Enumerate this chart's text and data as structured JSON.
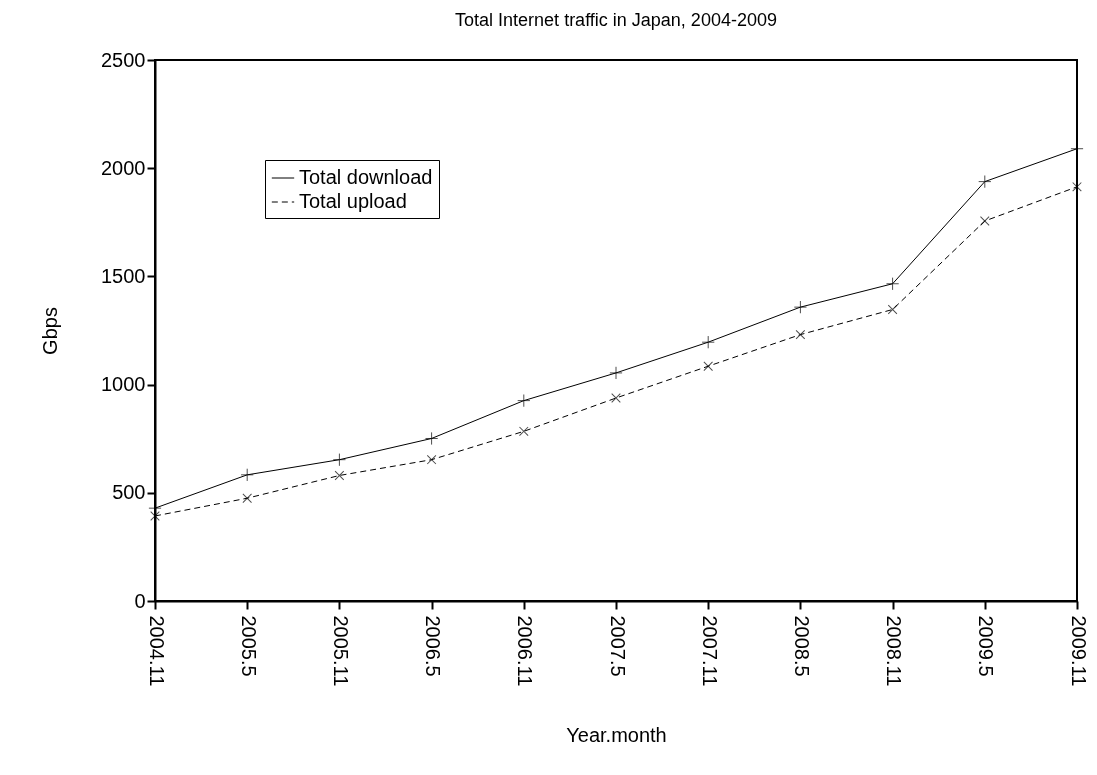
{
  "chart_data": {
    "type": "line",
    "title": "Total Internet traffic in Japan, 2004-2009",
    "xlabel": "Year.month",
    "ylabel": "Gbps",
    "categories": [
      "2004.11",
      "2005.5",
      "2005.11",
      "2006.5",
      "2006.11",
      "2007.5",
      "2007.11",
      "2008.5",
      "2008.11",
      "2009.5",
      "2009.11"
    ],
    "series": [
      {
        "name": "Total download",
        "color": "#000000",
        "line_style": "solid",
        "marker": "cross",
        "values": [
          429,
          583,
          653,
          751,
          926,
          1054,
          1196,
          1358,
          1466,
          1938,
          2090
        ]
      },
      {
        "name": "Total upload",
        "color": "#000000",
        "line_style": "dashed",
        "marker": "cross",
        "values": [
          393,
          475,
          580,
          653,
          784,
          938,
          1085,
          1231,
          1347,
          1756,
          1914
        ]
      }
    ],
    "ylim": [
      0,
      2500
    ],
    "yticks": [
      0,
      500,
      1000,
      1500,
      2000,
      2500
    ],
    "grid": false,
    "legend": "top left"
  }
}
